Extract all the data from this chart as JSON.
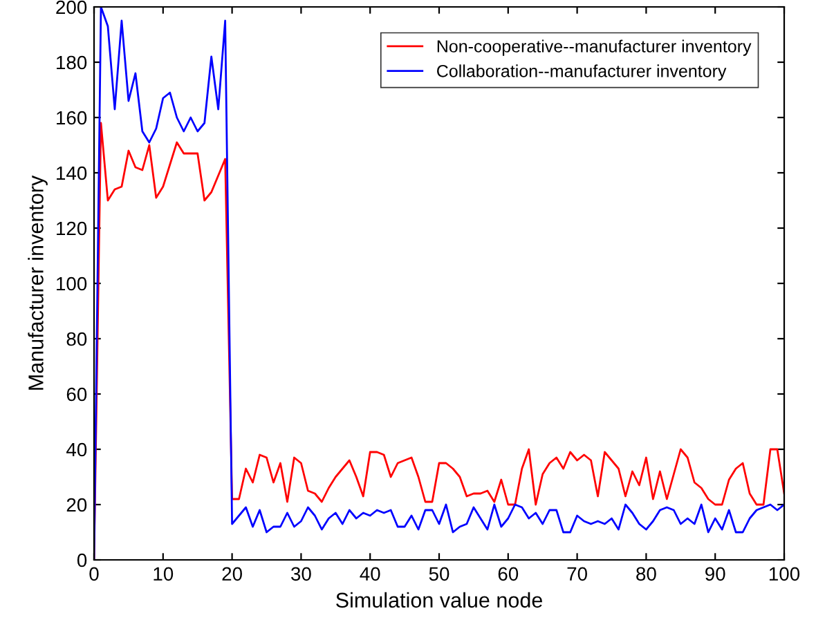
{
  "chart_data": {
    "type": "line",
    "xlabel": "Simulation value node",
    "ylabel": "Manufacturer inventory",
    "x": [
      0,
      1,
      2,
      3,
      4,
      5,
      6,
      7,
      8,
      9,
      10,
      11,
      12,
      13,
      14,
      15,
      16,
      17,
      18,
      19,
      20,
      21,
      22,
      23,
      24,
      25,
      26,
      27,
      28,
      29,
      30,
      31,
      32,
      33,
      34,
      35,
      36,
      37,
      38,
      39,
      40,
      41,
      42,
      43,
      44,
      45,
      46,
      47,
      48,
      49,
      50,
      51,
      52,
      53,
      54,
      55,
      56,
      57,
      58,
      59,
      60,
      61,
      62,
      63,
      64,
      65,
      66,
      67,
      68,
      69,
      70,
      71,
      72,
      73,
      74,
      75,
      76,
      77,
      78,
      79,
      80,
      81,
      82,
      83,
      84,
      85,
      86,
      87,
      88,
      89,
      90,
      91,
      92,
      93,
      94,
      95,
      96,
      97,
      98,
      99,
      100
    ],
    "series": [
      {
        "name": "Non-cooperative--manufacturer inventory",
        "color": "#ff0000",
        "values": [
          0,
          158,
          130,
          134,
          135,
          148,
          142,
          141,
          150,
          131,
          135,
          143,
          151,
          147,
          147,
          147,
          130,
          133,
          139,
          145,
          22,
          22,
          33,
          28,
          38,
          37,
          28,
          35,
          21,
          37,
          35,
          25,
          24,
          21,
          26,
          30,
          33,
          36,
          30,
          23,
          39,
          39,
          38,
          30,
          35,
          36,
          37,
          30,
          21,
          21,
          35,
          35,
          33,
          30,
          23,
          24,
          24,
          25,
          21,
          29,
          20,
          20,
          33,
          40,
          20,
          31,
          35,
          37,
          33,
          39,
          36,
          38,
          36,
          23,
          39,
          36,
          33,
          23,
          32,
          27,
          37,
          22,
          32,
          22,
          31,
          40,
          37,
          28,
          26,
          22,
          20,
          20,
          29,
          33,
          35,
          24,
          20,
          20,
          40,
          40,
          24
        ]
      },
      {
        "name": "Collaboration--manufacturer inventory",
        "color": "#0000ff",
        "values": [
          0,
          200,
          193,
          163,
          195,
          166,
          176,
          155,
          151,
          156,
          167,
          169,
          160,
          155,
          160,
          155,
          158,
          182,
          163,
          195,
          13,
          16,
          19,
          12,
          18,
          10,
          12,
          12,
          17,
          12,
          14,
          19,
          16,
          11,
          15,
          17,
          13,
          18,
          15,
          17,
          16,
          18,
          17,
          18,
          12,
          12,
          16,
          11,
          18,
          18,
          13,
          20,
          10,
          12,
          13,
          19,
          15,
          11,
          20,
          12,
          15,
          20,
          19,
          15,
          17,
          13,
          18,
          18,
          10,
          10,
          16,
          14,
          13,
          14,
          13,
          15,
          11,
          20,
          17,
          13,
          11,
          14,
          18,
          19,
          18,
          13,
          15,
          13,
          20,
          10,
          15,
          11,
          18,
          10,
          10,
          15,
          18,
          19,
          20,
          18,
          20
        ]
      }
    ],
    "xlim": [
      0,
      100
    ],
    "ylim": [
      0,
      200
    ],
    "xticks": [
      0,
      10,
      20,
      30,
      40,
      50,
      60,
      70,
      80,
      90,
      100
    ],
    "yticks": [
      0,
      20,
      40,
      60,
      80,
      100,
      120,
      140,
      160,
      180,
      200
    ],
    "legend": "top right",
    "grid": false,
    "marker": "none",
    "line_style": "solid"
  }
}
